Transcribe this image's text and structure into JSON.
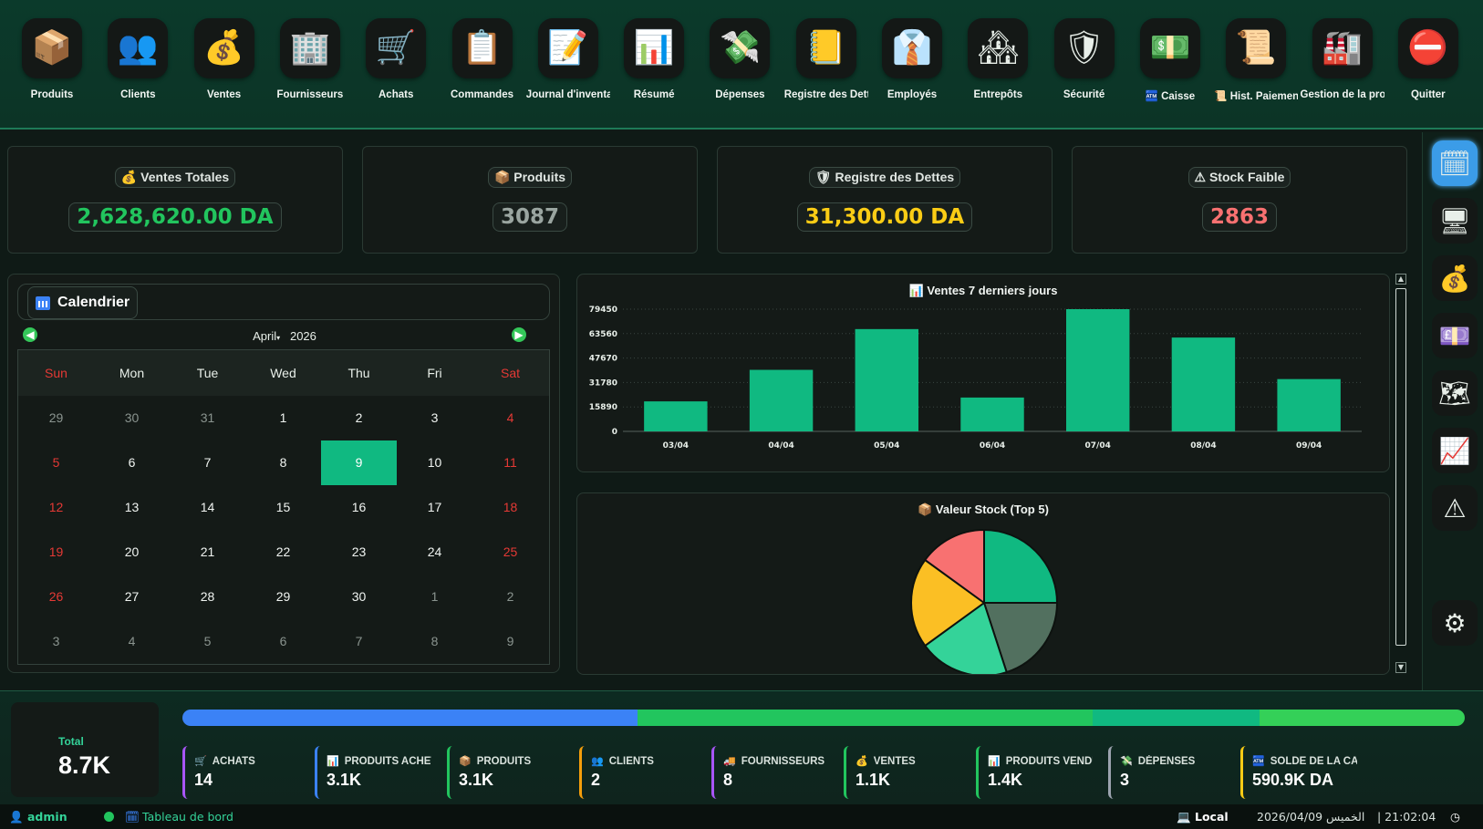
{
  "toolbar": {
    "items": [
      {
        "label": "Produits",
        "glyph": "📦",
        "icon": "box-icon"
      },
      {
        "label": "Clients",
        "glyph": "👥",
        "icon": "users-icon"
      },
      {
        "label": "Ventes",
        "glyph": "💰",
        "icon": "money-bag-icon"
      },
      {
        "label": "Fournisseurs",
        "glyph": "🏢",
        "icon": "building-icon"
      },
      {
        "label": "Achats",
        "glyph": "🛒",
        "icon": "cart-icon"
      },
      {
        "label": "Commandes",
        "glyph": "📋",
        "icon": "clipboard-icon"
      },
      {
        "label": "Journal d'inventa",
        "glyph": "📝",
        "icon": "memo-icon"
      },
      {
        "label": "Résumé",
        "glyph": "📊",
        "icon": "chart-icon"
      },
      {
        "label": "Dépenses",
        "glyph": "💸",
        "icon": "money-wings-icon"
      },
      {
        "label": "Registre des Dettes",
        "glyph": "📒",
        "icon": "ledger-icon"
      },
      {
        "label": "Employés",
        "glyph": "👔",
        "icon": "necktie-icon"
      },
      {
        "label": "Entrepôts",
        "glyph": "🏘",
        "icon": "houses-icon"
      },
      {
        "label": "Sécurité",
        "glyph": "🛡",
        "icon": "shield-icon"
      },
      {
        "label": "🏧 Caisse",
        "glyph": "💵",
        "icon": "cash-icon"
      },
      {
        "label": "📜 Hist. Paiement",
        "glyph": "📜",
        "icon": "scroll-icon"
      },
      {
        "label": "Gestion de la produ",
        "glyph": "🏭",
        "icon": "factory-icon"
      },
      {
        "label": "Quitter",
        "glyph": "⛔",
        "icon": "no-entry-icon"
      }
    ]
  },
  "stats": [
    {
      "title": "💰 Ventes Totales",
      "value": "2,628,620.00 DA",
      "color": "#22c55e"
    },
    {
      "title": "📦 Produits",
      "value": "3087",
      "color": "#9aa5a0"
    },
    {
      "title": "🛡 Registre des Dettes",
      "value": "31,300.00 DA",
      "color": "#facc15"
    },
    {
      "title": "⚠ Stock Faible",
      "value": "2863",
      "color": "#f87171"
    }
  ],
  "calendar": {
    "title": "Calendrier",
    "month": "April",
    "year": "2026",
    "weekdays": [
      "Sun",
      "Mon",
      "Tue",
      "Wed",
      "Thu",
      "Fri",
      "Sat"
    ],
    "weeks": [
      [
        "29",
        "30",
        "31",
        "1",
        "2",
        "3",
        "4"
      ],
      [
        "5",
        "6",
        "7",
        "8",
        "9",
        "10",
        "11"
      ],
      [
        "12",
        "13",
        "14",
        "15",
        "16",
        "17",
        "18"
      ],
      [
        "19",
        "20",
        "21",
        "22",
        "23",
        "24",
        "25"
      ],
      [
        "26",
        "27",
        "28",
        "29",
        "30",
        "1",
        "2"
      ],
      [
        "3",
        "4",
        "5",
        "6",
        "7",
        "8",
        "9"
      ]
    ],
    "selected": "9"
  },
  "chart_data": [
    {
      "type": "bar",
      "title": "📊 Ventes 7 derniers jours",
      "categories": [
        "03/04",
        "04/04",
        "05/04",
        "06/04",
        "07/04",
        "08/04",
        "09/04"
      ],
      "values": [
        19500,
        40000,
        66500,
        22000,
        79450,
        61000,
        34000
      ],
      "yticks": [
        "0",
        "15890",
        "31780",
        "47670",
        "63560",
        "79450"
      ],
      "ylim": [
        0,
        79450
      ],
      "grid": true,
      "color": "#10b981"
    },
    {
      "type": "pie",
      "title": "📦 Valeur Stock (Top 5)",
      "values": [
        25,
        20,
        20,
        20,
        15
      ],
      "colors": [
        "#10b981",
        "#52705f",
        "#34d399",
        "#fbbf24",
        "#f87171"
      ]
    }
  ],
  "sidebar": {
    "items": [
      {
        "glyph": "🗓",
        "icon": "calendar-icon",
        "active": true
      },
      {
        "glyph": "🖥",
        "icon": "monitor-icon"
      },
      {
        "glyph": "💰",
        "icon": "money-bag-icon"
      },
      {
        "glyph": "💷",
        "icon": "banknote-icon"
      },
      {
        "glyph": "🗺",
        "icon": "map-icon"
      },
      {
        "glyph": "📈",
        "icon": "trend-chart-icon"
      },
      {
        "glyph": "⚠",
        "icon": "warning-icon"
      },
      {
        "glyph": "⚙",
        "icon": "gear-icon"
      }
    ]
  },
  "footer": {
    "total_label": "Total",
    "total_value": "8.7K",
    "progress": [
      {
        "fraction": 0.355,
        "color": "#3b82f6"
      },
      {
        "fraction": 0.355,
        "color": "#22c55e"
      },
      {
        "fraction": 0.13,
        "color": "#10b981"
      },
      {
        "fraction": 0.16,
        "color": "#34d058"
      }
    ],
    "stats": [
      {
        "icon": "🛒",
        "label": "ACHATS",
        "value": "14",
        "color": "#a855f7"
      },
      {
        "icon": "📊",
        "label": "PRODUITS ACHETÉS",
        "value": "3.1K",
        "color": "#3b82f6"
      },
      {
        "icon": "📦",
        "label": "PRODUITS",
        "value": "3.1K",
        "color": "#22c55e"
      },
      {
        "icon": "👥",
        "label": "CLIENTS",
        "value": "2",
        "color": "#f59e0b"
      },
      {
        "icon": "🚚",
        "label": "FOURNISSEURS",
        "value": "8",
        "color": "#a855f7"
      },
      {
        "icon": "💰",
        "label": "VENTES",
        "value": "1.1K",
        "color": "#22c55e"
      },
      {
        "icon": "📊",
        "label": "PRODUITS VENDUS",
        "value": "1.4K",
        "color": "#22c55e"
      },
      {
        "icon": "💸",
        "label": "DÉPENSES",
        "value": "3",
        "color": "#9ca3af"
      },
      {
        "icon": "🏧",
        "label": "SOLDE DE LA CAISSE",
        "value": "590.9K DA",
        "color": "#facc15"
      }
    ]
  },
  "status": {
    "user": "admin",
    "page": "Tableau de bord",
    "mode": "Local",
    "datetime": "2026/04/09 الخميس",
    "time": "| 21:02:04"
  }
}
